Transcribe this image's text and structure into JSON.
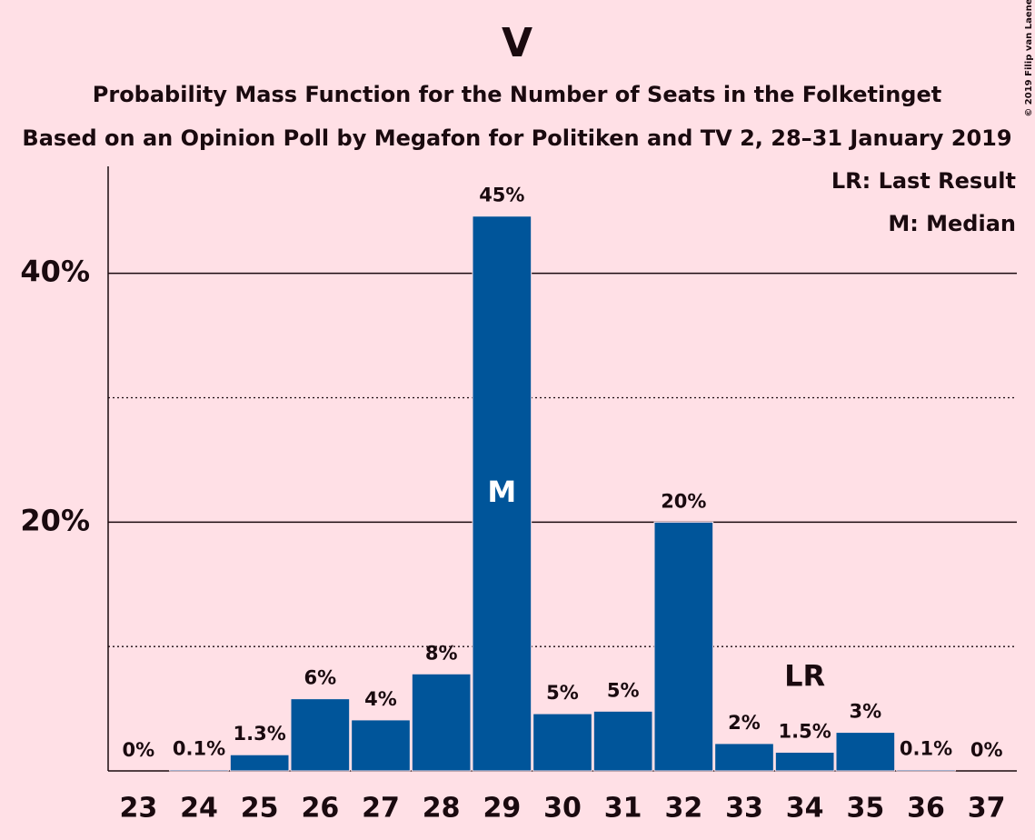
{
  "chart_data": {
    "type": "bar",
    "title": "V",
    "subtitle": "Probability Mass Function for the Number of Seats in the Folketinget",
    "subtitle2": "Based on an Opinion Poll by Megafon for Politiken and TV 2, 28–31 January 2019",
    "copyright": "© 2019 Filip van Laenen",
    "categories": [
      23,
      24,
      25,
      26,
      27,
      28,
      29,
      30,
      31,
      32,
      33,
      34,
      35,
      36,
      37
    ],
    "values": [
      0,
      0.1,
      1.3,
      5.8,
      4.1,
      7.8,
      44.6,
      4.6,
      4.8,
      20,
      2.2,
      1.5,
      3.1,
      0.1,
      0
    ],
    "value_labels": [
      "0%",
      "0.1%",
      "1.3%",
      "6%",
      "4%",
      "8%",
      "45%",
      "5%",
      "5%",
      "20%",
      "2%",
      "1.5%",
      "3%",
      "0.1%",
      "0%"
    ],
    "color": "#00559a",
    "ylim": [
      0,
      48.6
    ],
    "yticks": [
      {
        "value": 20,
        "label": "20%"
      },
      {
        "value": 40,
        "label": "40%"
      }
    ],
    "minor_yticks": [
      10,
      30
    ],
    "grid": true,
    "markers": [
      {
        "label": "M",
        "at": 29,
        "place": "inside"
      },
      {
        "label": "LR",
        "at": 34,
        "place": "above"
      }
    ],
    "legend": [
      "LR: Last Result",
      "M: Median"
    ],
    "legend_position": "upper right"
  }
}
